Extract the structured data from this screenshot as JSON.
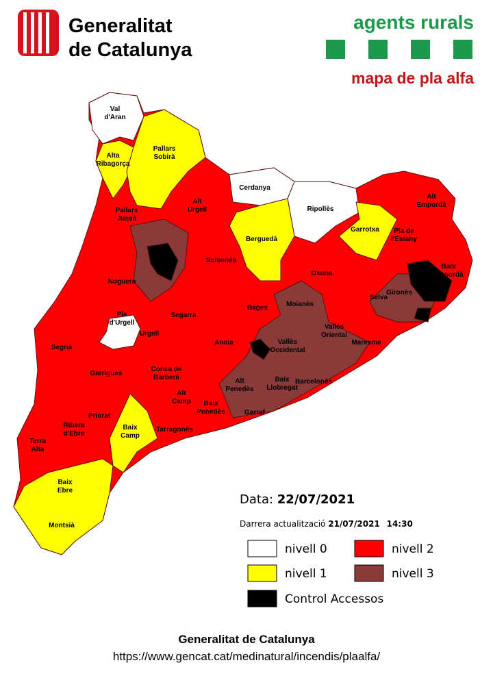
{
  "header": {
    "logo_line1": "Generalitat",
    "logo_line2": "de Catalunya",
    "brand": "agents rurals",
    "subtitle": "mapa de pla alfa"
  },
  "map": {
    "labels": [
      [
        "Val",
        "d'Aran"
      ],
      [
        "Alta",
        "Ribagorça"
      ],
      [
        "Pallars",
        "Sobirà"
      ],
      [
        "Cerdanya"
      ],
      [
        "Ripollès"
      ],
      [
        "Alt",
        "Empordà"
      ],
      [
        "Pallars",
        "Jussà"
      ],
      [
        "Alt",
        "Urgell"
      ],
      [
        "Berguedà"
      ],
      [
        "Garrotxa"
      ],
      [
        "Pla de",
        "l'Estany"
      ],
      [
        "Solsonès"
      ],
      [
        "Osona"
      ],
      [
        "Baix",
        "Empordà"
      ],
      [
        "Noguera"
      ],
      [
        "Gironès"
      ],
      [
        "Bages"
      ],
      [
        "Moianès"
      ],
      [
        "Selva"
      ],
      [
        "Pla",
        "d'Urgell"
      ],
      [
        "Segarra"
      ],
      [
        "Urgell"
      ],
      [
        "Vallès",
        "Oriental"
      ],
      [
        "Segrià"
      ],
      [
        "Anoia"
      ],
      [
        "Vallès",
        "Occidental"
      ],
      [
        "Maresme"
      ],
      [
        "Garrigues"
      ],
      [
        "Conca de",
        "Barberà"
      ],
      [
        "Alt",
        "Penedès"
      ],
      [
        "Baix",
        "Llobregat"
      ],
      [
        "Barcelonès"
      ],
      [
        "Alt",
        "Camp"
      ],
      [
        "Priorat"
      ],
      [
        "Baix",
        "Penedès"
      ],
      [
        "Garraf"
      ],
      [
        "Ribera",
        "d'Ebre"
      ],
      [
        "Baix",
        "Camp"
      ],
      [
        "Tarragonès"
      ],
      [
        "Terra",
        "Alta"
      ],
      [
        "Baix",
        "Ebre"
      ],
      [
        "Montsià"
      ]
    ]
  },
  "info": {
    "date_label": "Data:",
    "date": "22/07/2021",
    "update_label": "Darrera actualització",
    "update_date": "21/07/2021",
    "update_time": "14:30"
  },
  "legend": [
    {
      "label": "nivell 0",
      "color": "#ffffff"
    },
    {
      "label": "nivell 1",
      "color": "#ffff00"
    },
    {
      "label": "nivell 2",
      "color": "#ff0000"
    },
    {
      "label": "nivell 3",
      "color": "#8b3a3a"
    },
    {
      "label": "Control Accessos",
      "color": "#000000"
    }
  ],
  "footer": {
    "org": "Generalitat de Catalunya",
    "url": "https://www.gencat.cat/medinatural/incendis/plaalfa/"
  }
}
